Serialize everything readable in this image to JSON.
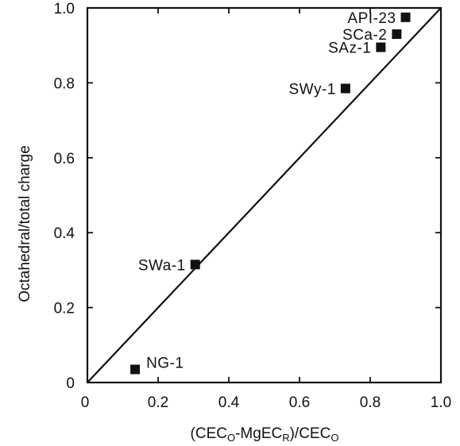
{
  "chart_data": {
    "type": "scatter",
    "title": "",
    "xlabel": "(CEC_O-MgEC_R)/CEC_O",
    "ylabel": "Octahedral/total charge",
    "xlim": [
      0,
      1.0
    ],
    "ylim": [
      0,
      1.0
    ],
    "x_ticks": [
      {
        "value": 0,
        "label": "0"
      },
      {
        "value": 0.2,
        "label": "0.2"
      },
      {
        "value": 0.4,
        "label": "0.4"
      },
      {
        "value": 0.6,
        "label": "0.6"
      },
      {
        "value": 0.8,
        "label": "0.8"
      },
      {
        "value": 1.0,
        "label": "1.0"
      }
    ],
    "y_ticks": [
      {
        "value": 0,
        "label": "0"
      },
      {
        "value": 0.2,
        "label": "0.2"
      },
      {
        "value": 0.4,
        "label": "0.4"
      },
      {
        "value": 0.6,
        "label": "0.6"
      },
      {
        "value": 0.8,
        "label": "0.8"
      },
      {
        "value": 1.0,
        "label": "1.0"
      }
    ],
    "grid": false,
    "marker": "square",
    "points": [
      {
        "label": "NG-1",
        "x": 0.135,
        "y": 0.035
      },
      {
        "label": "SWa-1",
        "x": 0.305,
        "y": 0.315
      },
      {
        "label": "SWy-1",
        "x": 0.73,
        "y": 0.785
      },
      {
        "label": "SAz-1",
        "x": 0.83,
        "y": 0.895
      },
      {
        "label": "SCa-2",
        "x": 0.875,
        "y": 0.93
      },
      {
        "label": "API-23",
        "x": 0.9,
        "y": 0.975
      }
    ],
    "reference_line": {
      "name": "1:1 line",
      "x": [
        0,
        1.0
      ],
      "y": [
        0,
        1.0
      ]
    }
  },
  "axes_text": {
    "xlabel_main": "(CEC",
    "xlabel_sub1": "O",
    "xlabel_mid": "-MgEC",
    "xlabel_sub2": "R",
    "xlabel_mid2": ")/CEC",
    "xlabel_sub3": "O"
  }
}
